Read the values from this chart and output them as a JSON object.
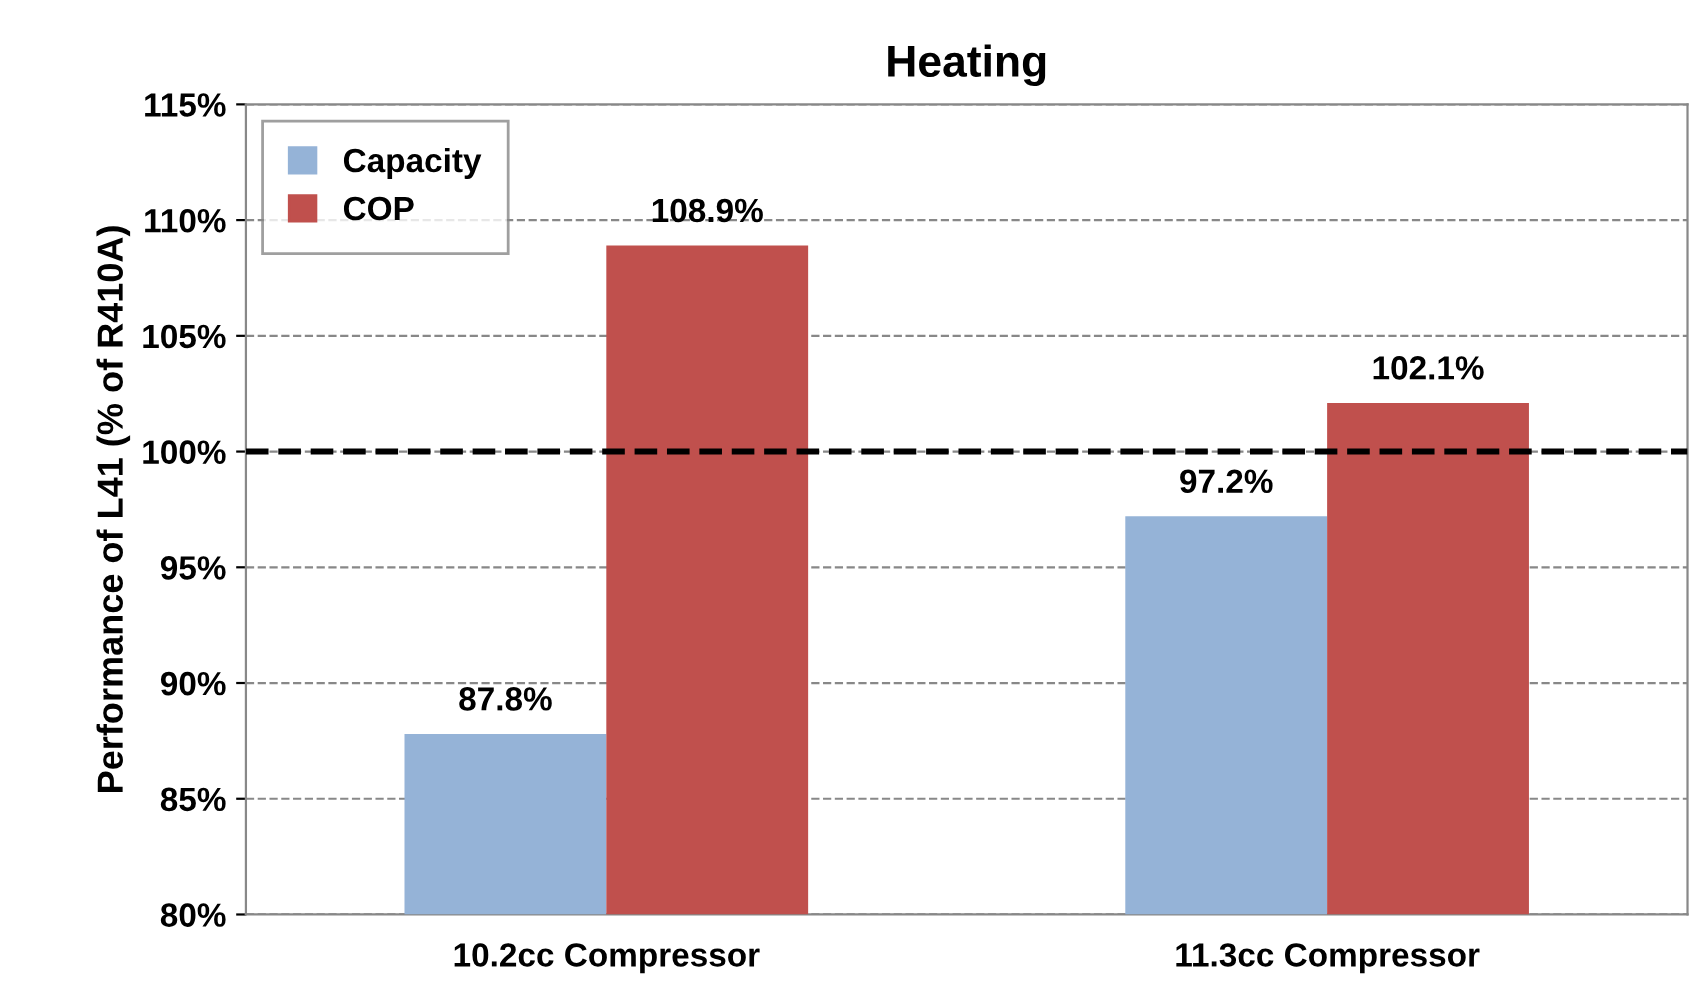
{
  "chart_data": {
    "type": "bar",
    "title": "Heating",
    "ylabel": "Performance of L41 (% of R410A)",
    "categories": [
      "10.2cc Compressor",
      "11.3cc Compressor"
    ],
    "series": [
      {
        "name": "Capacity",
        "color": "#95b3d7",
        "values": [
          87.8,
          97.2
        ],
        "value_labels": [
          "87.8%",
          "97.2%"
        ]
      },
      {
        "name": "COP",
        "color": "#c0504d",
        "values": [
          108.9,
          102.1
        ],
        "value_labels": [
          "108.9%",
          "102.1%"
        ]
      }
    ],
    "ylim": [
      80,
      115
    ],
    "yticks": [
      {
        "value": 80,
        "label": "80%"
      },
      {
        "value": 85,
        "label": "85%"
      },
      {
        "value": 90,
        "label": "90%"
      },
      {
        "value": 95,
        "label": "95%"
      },
      {
        "value": 100,
        "label": "100%"
      },
      {
        "value": 105,
        "label": "105%"
      },
      {
        "value": 110,
        "label": "110%"
      },
      {
        "value": 115,
        "label": "115%"
      }
    ],
    "ref_lines": [
      {
        "axis": "y",
        "value": 100,
        "color": "#000000",
        "line_style": "dashed"
      }
    ],
    "grid": "y",
    "legend": "top left"
  }
}
